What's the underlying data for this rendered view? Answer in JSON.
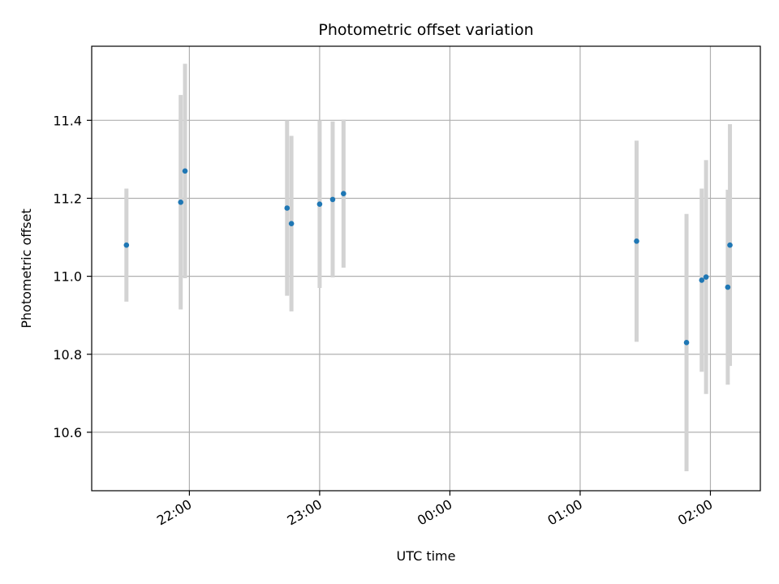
{
  "chart_data": {
    "type": "scatter",
    "title": "Photometric offset variation",
    "xlabel": "UTC time",
    "ylabel": "Photometric offset",
    "grid": true,
    "x_ticks": [
      "22:00",
      "23:00",
      "00:00",
      "01:00",
      "02:00"
    ],
    "y_ticks": [
      10.6,
      10.8,
      11.0,
      11.2,
      11.4
    ],
    "ylim": [
      10.45,
      11.59
    ],
    "xlim": [
      "21:15",
      "02:23"
    ],
    "colors": {
      "point": "#1f77b4",
      "errorbar": "#d3d3d3",
      "grid": "#b0b0b0"
    },
    "points": [
      {
        "time": "21:31",
        "value": 11.08,
        "err": 0.145
      },
      {
        "time": "21:56",
        "value": 11.19,
        "err": 0.275
      },
      {
        "time": "21:58",
        "value": 11.27,
        "err": 0.275
      },
      {
        "time": "22:45",
        "value": 11.175,
        "err": 0.225
      },
      {
        "time": "22:47",
        "value": 11.135,
        "err": 0.225
      },
      {
        "time": "23:00",
        "value": 11.185,
        "err": 0.215
      },
      {
        "time": "23:06",
        "value": 11.197,
        "err": 0.2
      },
      {
        "time": "23:11",
        "value": 11.212,
        "err": 0.19
      },
      {
        "time": "01:26",
        "value": 11.09,
        "err": 0.258
      },
      {
        "time": "01:49",
        "value": 10.83,
        "err": 0.33
      },
      {
        "time": "01:56",
        "value": 10.99,
        "err": 0.235
      },
      {
        "time": "01:58",
        "value": 10.998,
        "err": 0.3
      },
      {
        "time": "02:08",
        "value": 10.972,
        "err": 0.25
      },
      {
        "time": "02:09",
        "value": 11.08,
        "err": 0.31
      }
    ]
  }
}
